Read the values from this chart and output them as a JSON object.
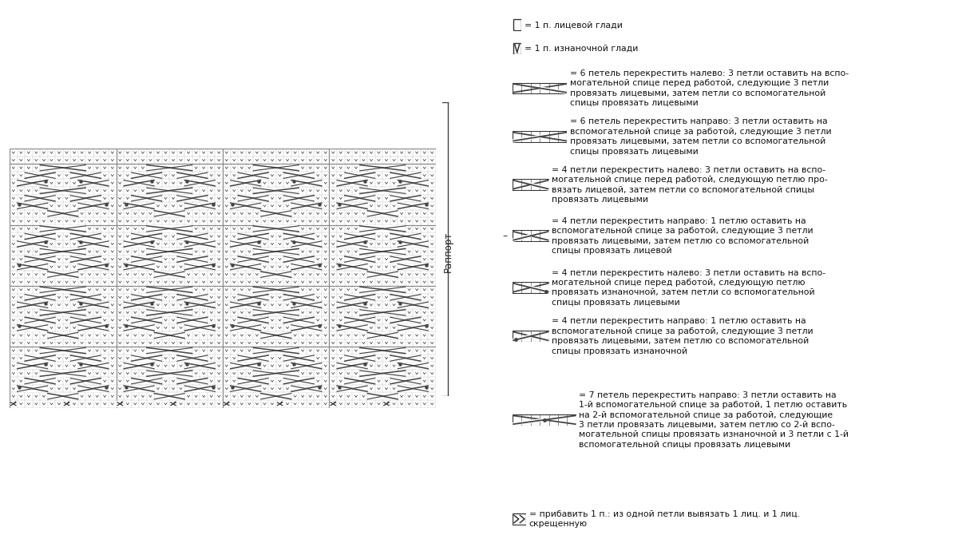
{
  "fig_width": 12.0,
  "fig_height": 6.9,
  "bg_color": "#ffffff",
  "legend_items": [
    {
      "type": "square_empty",
      "label": "= 1 п. лицевой глади"
    },
    {
      "type": "v_symbol",
      "label": "= 1 п. изнаночной глади"
    },
    {
      "type": "cable_left_6",
      "label": "= 6 петель перекрестить налево: 3 петли оставить на вспо-\nмогательной спице перед работой, следующие 3 петли\nпровязать лицевыми, затем петли со вспомогательной\nспицы провязать лицевыми"
    },
    {
      "type": "cable_right_6",
      "label": "= 6 петель перекрестить направо: 3 петли оставить на\nвспомогательной спице за работой, следующие 3 петли\nпровязать лицевыми, затем петли со вспомогательной\nспицы провязать лицевыми"
    },
    {
      "type": "cable_left_4",
      "label": "= 4 петли перекрестить налево: 3 петли оставить на вспо-\nмогательной спице перед работой, следующую петлю про-\nвязать лицевой, затем петли со вспомогательной спицы\nпровязать лицевыми"
    },
    {
      "type": "cable_right_4",
      "label": "= 4 петли перекрестить направо: 1 петлю оставить на\nвспомогательной спице за работой, следующие 3 петли\nпровязать лицевыми, затем петлю со вспомогательной\nспицы провязать лицевой"
    },
    {
      "type": "cable_left_4_dot",
      "label": "= 4 петли перекрестить налево: 3 петли оставить на вспо-\nмогательной спице перед работой, следующую петлю\nпровязать изнаночной, затем петли со вспомогательной\nспицы провязать лицевыми"
    },
    {
      "type": "cable_right_4_dot",
      "label": "= 4 петли перекрестить направо: 1 петлю оставить на\nвспомогательной спице за работой, следующие 3 петли\nпровязать лицевыми, затем петлю со вспомогательной\nспицы провязать изнаночной"
    },
    {
      "type": "cable_right_7",
      "label": "= 7 петель перекрестить направо: 3 петли оставить на\n1-й вспомогательной спице за работой, 1 петлю оставить\nна 2-й вспомогательной спице за работой, следующие\n3 петли провязать лицевыми, затем петлю со 2-й вспо-\nмогательной спицы провязать изнаночной и 3 петли с 1-й\nвспомогательной спицы провязать лицевыми"
    },
    {
      "type": "increase",
      "label": "= прибавить 1 п.: из одной петли вывязать 1 лиц. и 1 лиц.\nскрещенную"
    }
  ],
  "rapporte_label": "Раппорт",
  "font_size_legend": 7.8,
  "font_size_rapporte": 8.5,
  "grid_thin_color": "#bbbbbb",
  "grid_thick_color": "#888888",
  "symbol_color": "#333333",
  "cable_color": "#444444"
}
